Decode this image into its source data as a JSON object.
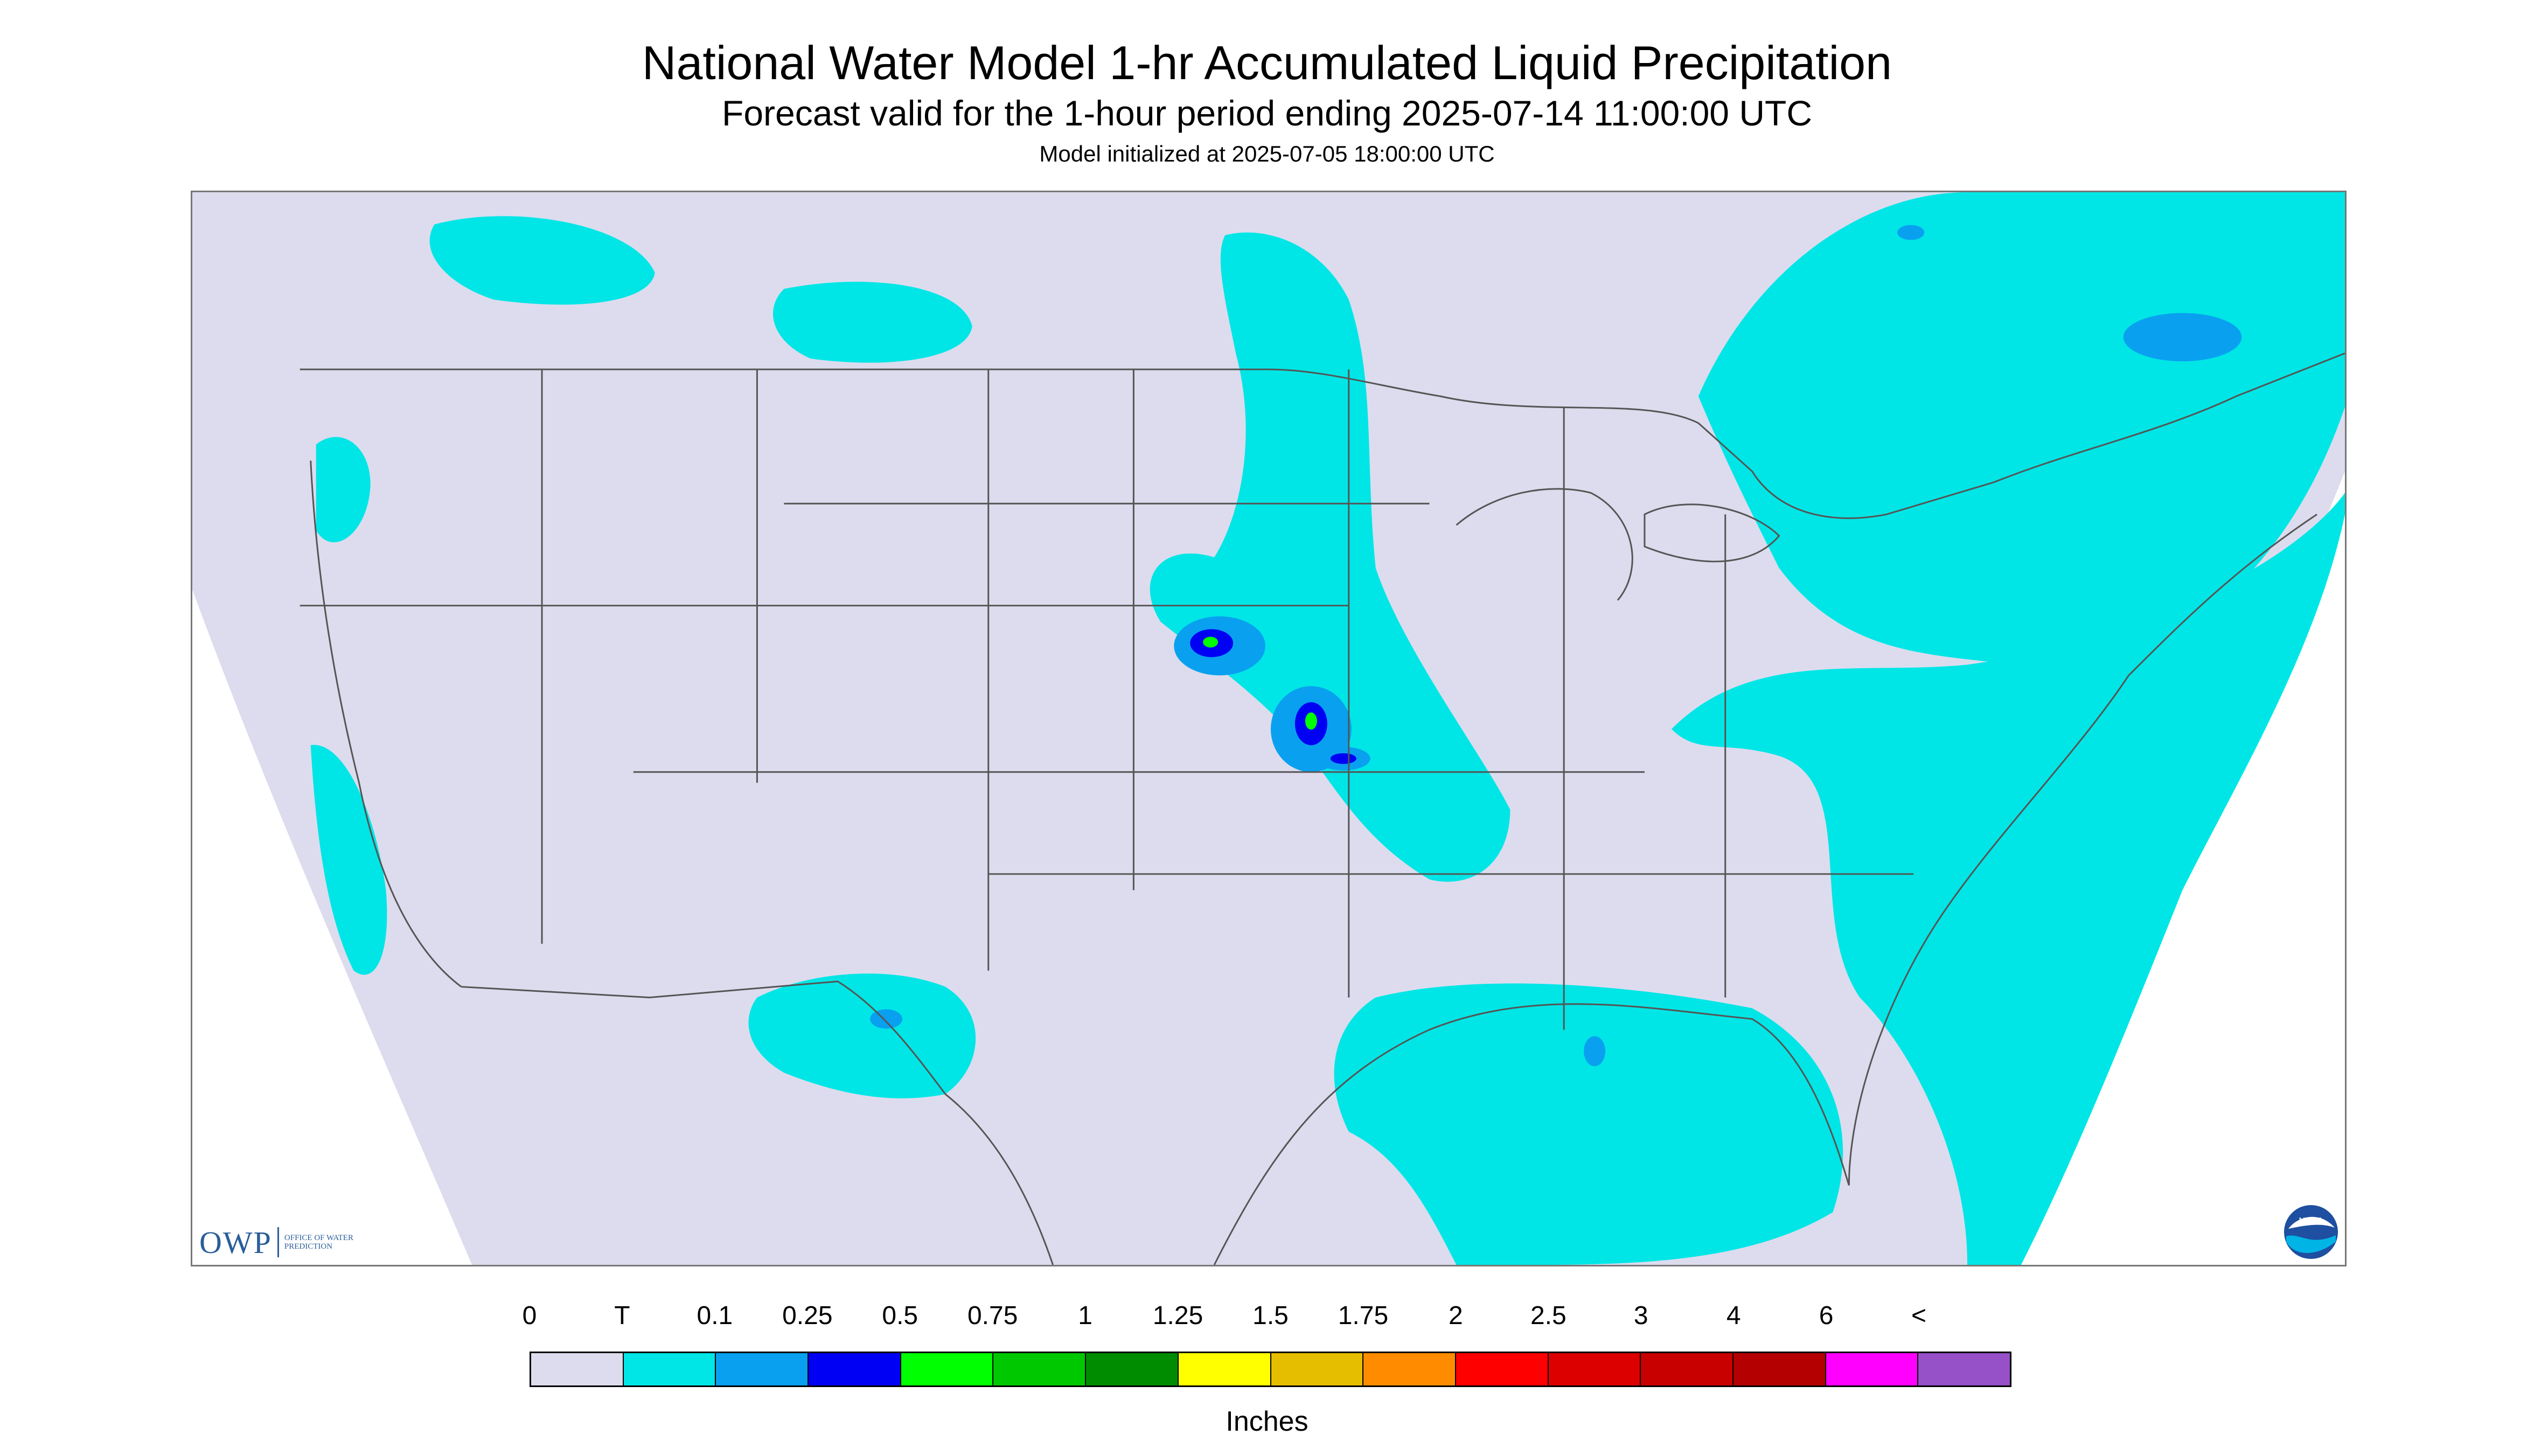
{
  "title": "National Water Model 1-hr Accumulated Liquid Precipitation",
  "subtitle": "Forecast valid for the 1-hour period ending 2025-07-14 11:00:00 UTC",
  "initialized": "Model initialized at 2025-07-05 18:00:00 UTC",
  "colors": {
    "no_precip": "#dcdcee",
    "trace": "#00e6e6",
    "outside": "#ffffff",
    "border": "#555555"
  },
  "legend": {
    "units": "Inches",
    "labels": [
      "0",
      "T",
      "0.1",
      "0.25",
      "0.5",
      "0.75",
      "1",
      "1.25",
      "1.5",
      "1.75",
      "2",
      "2.5",
      "3",
      "4",
      "6",
      "<"
    ],
    "colors": [
      "#dcdcee",
      "#00e6e6",
      "#0aa0f0",
      "#0000f5",
      "#00ff00",
      "#00c800",
      "#008c00",
      "#ffff00",
      "#e6be00",
      "#ff8c00",
      "#ff0000",
      "#dc0000",
      "#c80000",
      "#b40000",
      "#ff00ff",
      "#9650c8"
    ]
  },
  "logos": {
    "owp": {
      "text": "OWP",
      "subtext": "OFFICE OF WATER PREDICTION"
    },
    "noaa": {
      "text": "NOAA",
      "icon": "noaa-emblem-icon"
    }
  }
}
